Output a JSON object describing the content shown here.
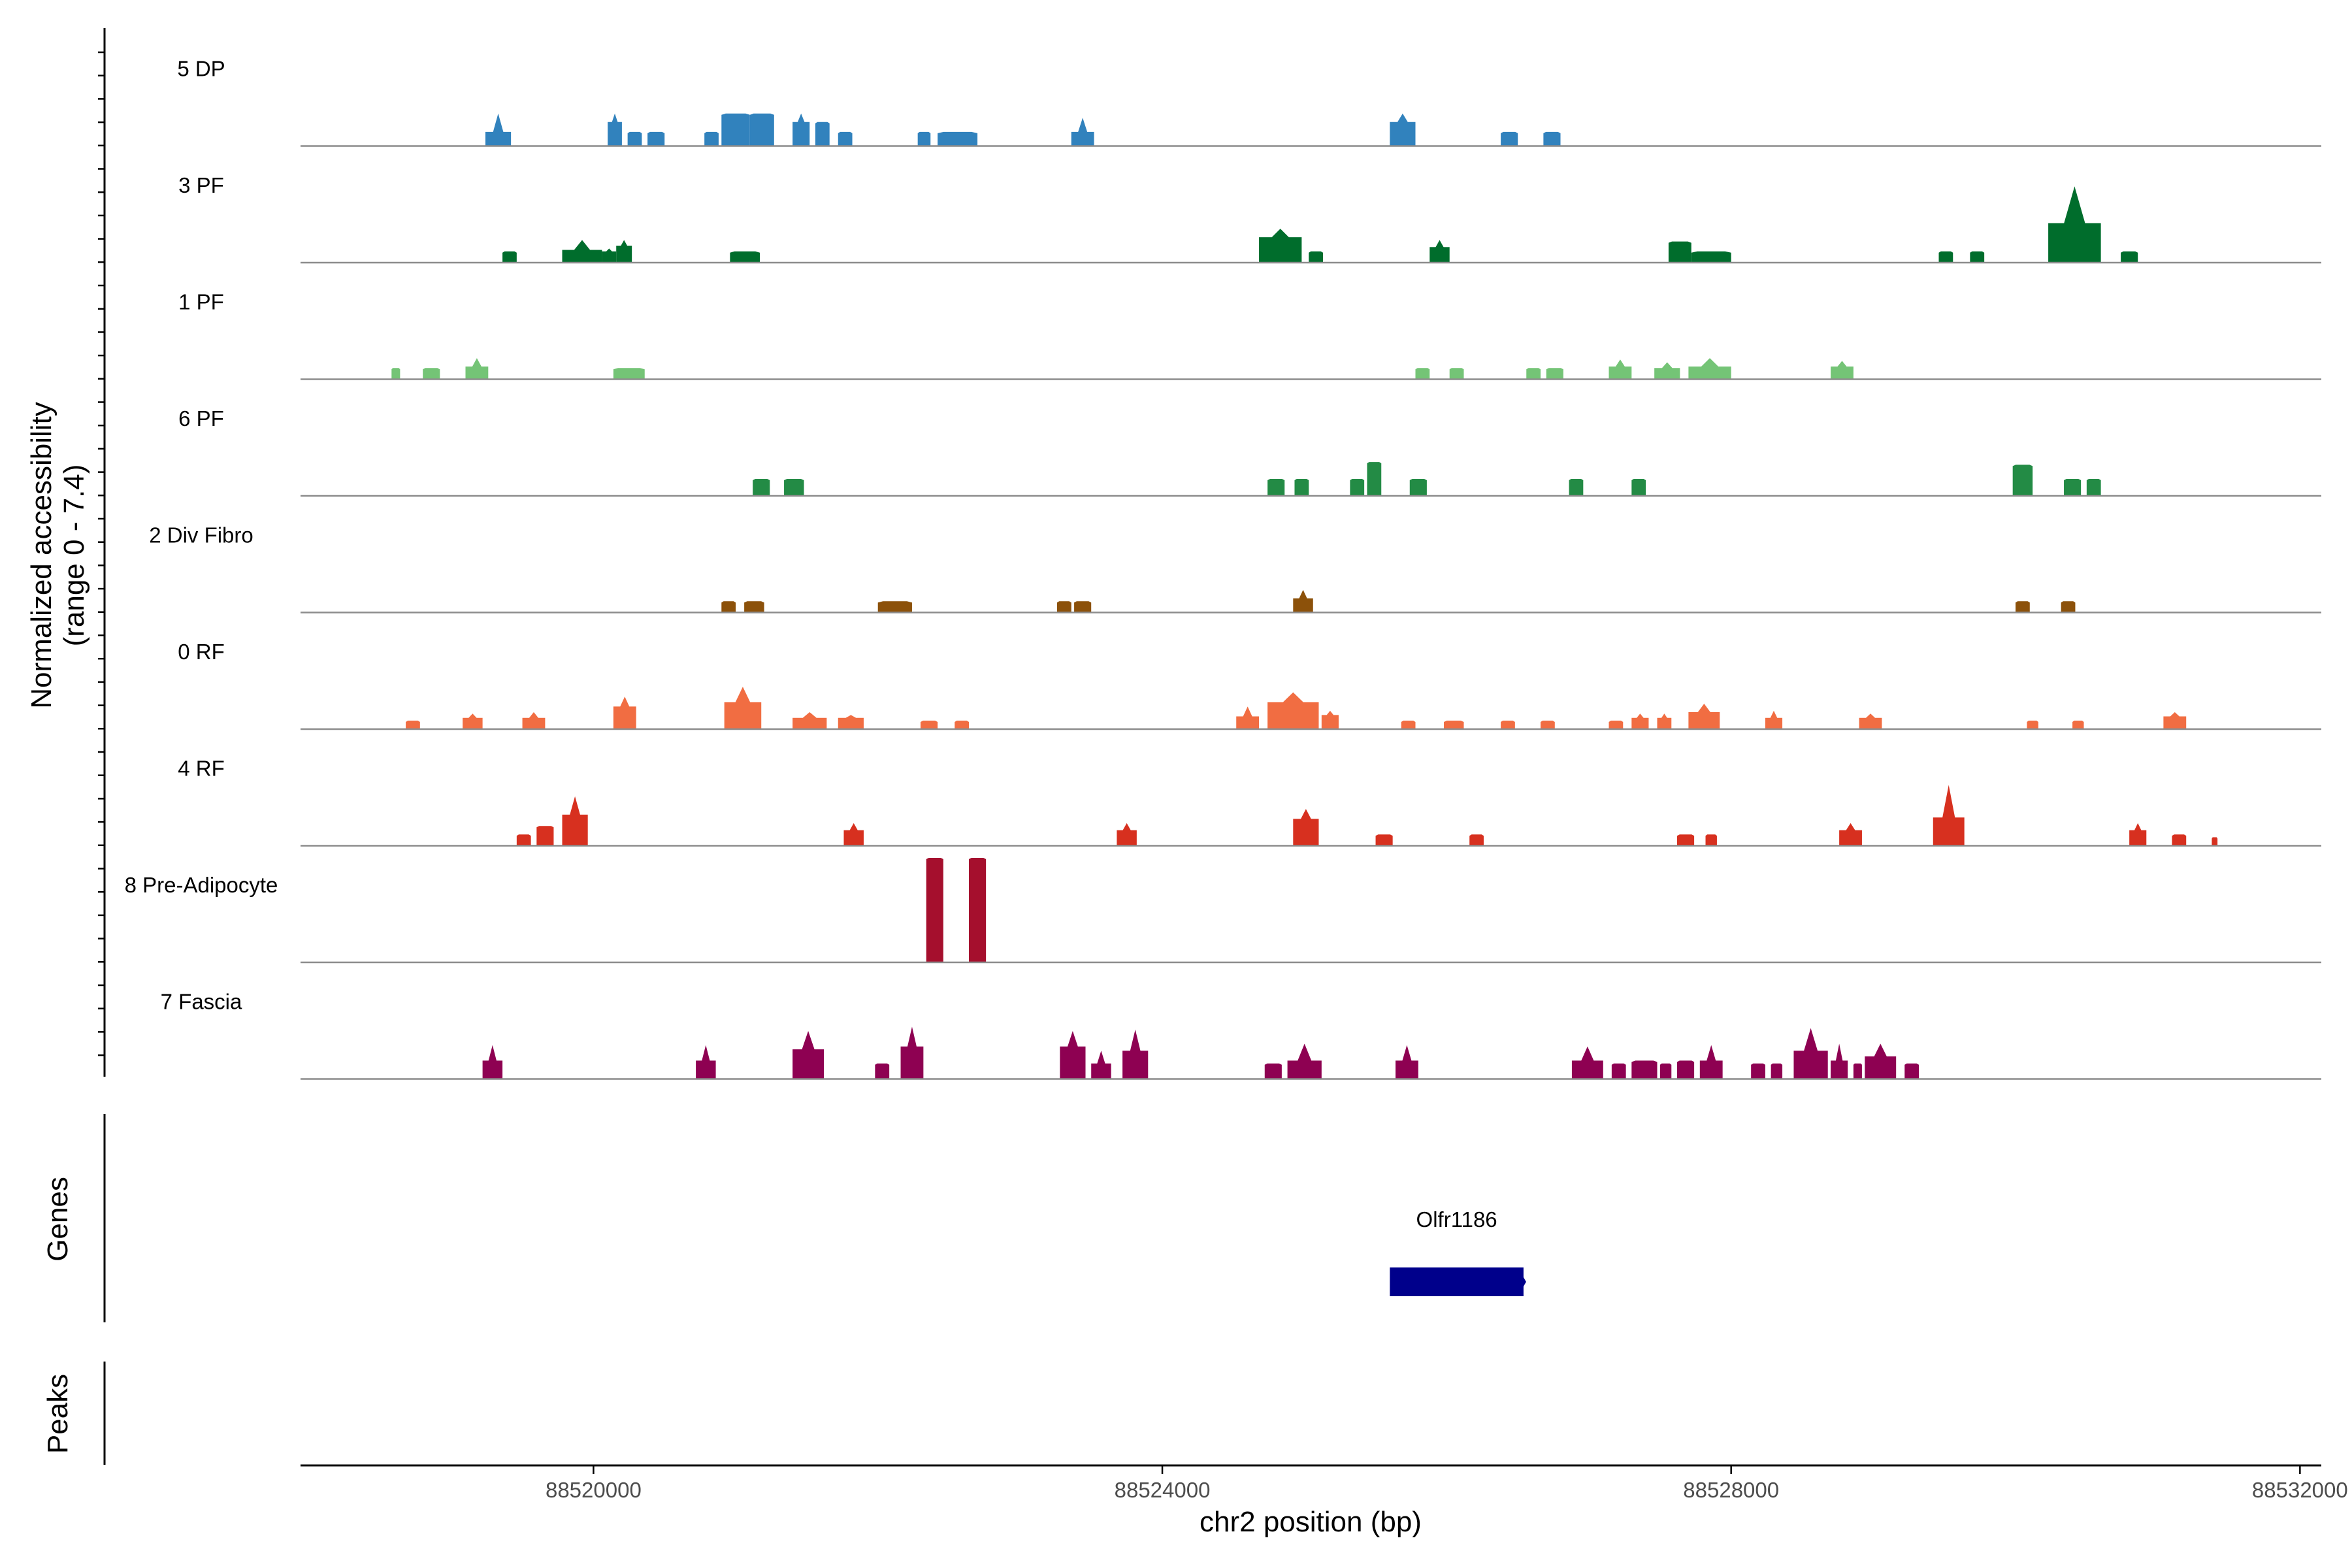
{
  "chart_data": {
    "type": "coverage",
    "x_axis": {
      "label": "chr2 position (bp)",
      "range": [
        88517940,
        88532150
      ],
      "ticks": [
        88520000,
        88524000,
        88528000,
        88532000
      ],
      "tick_labels": [
        "88520000",
        "88524000",
        "88528000",
        "88532000"
      ]
    },
    "y_axis": {
      "label_line1": "Normalized accessibility",
      "label_line2": "(range 0 - 7.4)",
      "range": [
        0,
        7.4
      ]
    },
    "genes_label": "Genes",
    "peaks_label": "Peaks",
    "genes": [
      {
        "name": "Olfr1186",
        "start": 88525600,
        "end": 88526540,
        "strand": "+",
        "color": "#00008B"
      }
    ],
    "tracks": [
      {
        "name": "5 DP",
        "color": "#3182BD",
        "peaks": [
          [
            88519240,
            88519420,
            1.0,
            2.3
          ],
          [
            88520100,
            88520200,
            1.7,
            2.3
          ],
          [
            88520240,
            88520340,
            1.0,
            1.0
          ],
          [
            88520380,
            88520500,
            1.0,
            1.0
          ],
          [
            88520780,
            88520880,
            1.0,
            1.0
          ],
          [
            88520900,
            88521100,
            2.3,
            2.3
          ],
          [
            88521100,
            88521270,
            2.3,
            1.0
          ],
          [
            88521400,
            88521520,
            1.7,
            2.3
          ],
          [
            88521560,
            88521660,
            1.7,
            1.0
          ],
          [
            88521720,
            88521820,
            1.0,
            1.0
          ],
          [
            88522280,
            88522370,
            1.0,
            1.0
          ],
          [
            88522420,
            88522700,
            1.0,
            1.0
          ],
          [
            88523360,
            88523520,
            1.0,
            2.0
          ],
          [
            88525600,
            88525780,
            1.7,
            2.3
          ],
          [
            88526380,
            88526500,
            1.0,
            1.0
          ],
          [
            88526680,
            88526800,
            1.0,
            1.0
          ]
        ]
      },
      {
        "name": "3 PF",
        "color": "#006D2C",
        "peaks": [
          [
            88519360,
            88519460,
            0.8,
            0.8
          ],
          [
            88519780,
            88520060,
            0.9,
            1.6
          ],
          [
            88520060,
            88520160,
            0.8,
            1.0
          ],
          [
            88520160,
            88520270,
            1.2,
            1.6
          ],
          [
            88520960,
            88521170,
            0.8,
            0.8
          ],
          [
            88524680,
            88524980,
            1.8,
            2.4
          ],
          [
            88525030,
            88525130,
            0.8,
            0.8
          ],
          [
            88525880,
            88526020,
            1.1,
            1.6
          ],
          [
            88527560,
            88527720,
            1.5,
            1.5
          ],
          [
            88527720,
            88528000,
            0.8,
            0.8
          ],
          [
            88529460,
            88529560,
            0.8,
            0.8
          ],
          [
            88529680,
            88529780,
            0.8,
            0.8
          ],
          [
            88530230,
            88530600,
            2.8,
            5.4
          ],
          [
            88530740,
            88530860,
            0.8,
            0.8
          ]
        ]
      },
      {
        "name": "1 PF",
        "color": "#74C476",
        "peaks": [
          [
            88518580,
            88518640,
            0.8,
            0.8
          ],
          [
            88518800,
            88518920,
            0.8,
            0.8
          ],
          [
            88519100,
            88519260,
            0.9,
            1.5
          ],
          [
            88520140,
            88520360,
            0.8,
            0.8
          ],
          [
            88525780,
            88525880,
            0.8,
            0.8
          ],
          [
            88526020,
            88526120,
            0.8,
            0.8
          ],
          [
            88526560,
            88526660,
            0.8,
            0.8
          ],
          [
            88526700,
            88526820,
            0.8,
            0.8
          ],
          [
            88527140,
            88527300,
            0.9,
            1.4
          ],
          [
            88527460,
            88527640,
            0.8,
            1.2
          ],
          [
            88527700,
            88528000,
            0.9,
            1.5
          ],
          [
            88528700,
            88528860,
            0.9,
            1.3
          ]
        ]
      },
      {
        "name": "6 PF",
        "color": "#238B45",
        "peaks": [
          [
            88521120,
            88521240,
            1.2,
            1.2
          ],
          [
            88521340,
            88521480,
            1.2,
            1.2
          ],
          [
            88524740,
            88524860,
            1.2,
            1.2
          ],
          [
            88524930,
            88525030,
            1.2,
            1.2
          ],
          [
            88525320,
            88525420,
            1.2,
            1.2
          ],
          [
            88525440,
            88525540,
            2.4,
            2.4
          ],
          [
            88525740,
            88525860,
            1.2,
            1.2
          ],
          [
            88526860,
            88526960,
            1.2,
            1.2
          ],
          [
            88527300,
            88527400,
            1.2,
            1.2
          ],
          [
            88529980,
            88530120,
            2.2,
            2.2
          ],
          [
            88530340,
            88530460,
            1.2,
            1.2
          ],
          [
            88530500,
            88530600,
            1.2,
            1.2
          ]
        ]
      },
      {
        "name": "2 Div Fibro",
        "color": "#8C510A",
        "peaks": [
          [
            88520900,
            88521000,
            0.8,
            0.8
          ],
          [
            88521060,
            88521200,
            0.8,
            0.8
          ],
          [
            88522000,
            88522240,
            0.8,
            0.8
          ],
          [
            88523260,
            88523360,
            0.8,
            0.8
          ],
          [
            88523380,
            88523500,
            0.8,
            0.8
          ],
          [
            88524920,
            88525060,
            1.0,
            1.6
          ],
          [
            88530000,
            88530100,
            0.8,
            0.8
          ],
          [
            88530320,
            88530420,
            0.8,
            0.8
          ]
        ]
      },
      {
        "name": "0 RF",
        "color": "#F16D42",
        "peaks": [
          [
            88518680,
            88518780,
            0.6,
            0.6
          ],
          [
            88519080,
            88519220,
            0.8,
            1.1
          ],
          [
            88519500,
            88519660,
            0.8,
            1.2
          ],
          [
            88520140,
            88520300,
            1.6,
            2.3
          ],
          [
            88520920,
            88521180,
            1.9,
            3.0
          ],
          [
            88521400,
            88521640,
            0.8,
            1.2
          ],
          [
            88521720,
            88521900,
            0.8,
            1.0
          ],
          [
            88522300,
            88522420,
            0.6,
            0.6
          ],
          [
            88522540,
            88522640,
            0.6,
            0.6
          ],
          [
            88524520,
            88524680,
            0.9,
            1.6
          ],
          [
            88524740,
            88525100,
            1.9,
            2.6
          ],
          [
            88525120,
            88525240,
            1.0,
            1.3
          ],
          [
            88525680,
            88525780,
            0.6,
            0.6
          ],
          [
            88525980,
            88526120,
            0.6,
            0.6
          ],
          [
            88526380,
            88526480,
            0.6,
            0.6
          ],
          [
            88526660,
            88526760,
            0.6,
            0.6
          ],
          [
            88527140,
            88527240,
            0.6,
            0.6
          ],
          [
            88527300,
            88527420,
            0.8,
            1.1
          ],
          [
            88527480,
            88527580,
            0.8,
            1.1
          ],
          [
            88527700,
            88527920,
            1.2,
            1.8
          ],
          [
            88528240,
            88528360,
            0.8,
            1.3
          ],
          [
            88528900,
            88529060,
            0.8,
            1.1
          ],
          [
            88530080,
            88530160,
            0.6,
            0.6
          ],
          [
            88530400,
            88530480,
            0.6,
            0.6
          ],
          [
            88531040,
            88531200,
            0.9,
            1.2
          ]
        ]
      },
      {
        "name": "4 RF",
        "color": "#D7301F",
        "peaks": [
          [
            88519460,
            88519560,
            0.8,
            0.8
          ],
          [
            88519600,
            88519720,
            1.4,
            1.4
          ],
          [
            88519780,
            88519960,
            2.2,
            3.5
          ],
          [
            88521760,
            88521900,
            1.1,
            1.6
          ],
          [
            88523680,
            88523820,
            1.1,
            1.6
          ],
          [
            88524920,
            88525100,
            1.9,
            2.6
          ],
          [
            88525500,
            88525620,
            0.8,
            0.8
          ],
          [
            88526160,
            88526260,
            0.8,
            0.8
          ],
          [
            88527620,
            88527740,
            0.8,
            0.8
          ],
          [
            88527820,
            88527900,
            0.8,
            0.8
          ],
          [
            88528760,
            88528920,
            1.1,
            1.6
          ],
          [
            88529420,
            88529640,
            2.0,
            4.3
          ],
          [
            88530800,
            88530920,
            1.1,
            1.6
          ],
          [
            88531100,
            88531200,
            0.8,
            0.8
          ],
          [
            88531380,
            88531420,
            0.6,
            0.6
          ]
        ]
      },
      {
        "name": "8 Pre-Adipocyte",
        "color": "#A50F2D",
        "peaks": [
          [
            88522340,
            88522460,
            7.4,
            7.4
          ],
          [
            88522640,
            88522760,
            7.4,
            7.4
          ]
        ]
      },
      {
        "name": "7 Fascia",
        "color": "#8E0152",
        "peaks": [
          [
            88519220,
            88519360,
            1.3,
            2.4
          ],
          [
            88520720,
            88520860,
            1.3,
            2.4
          ],
          [
            88521400,
            88521620,
            2.1,
            3.4
          ],
          [
            88521980,
            88522080,
            1.1,
            1.1
          ],
          [
            88522160,
            88522320,
            2.3,
            3.7
          ],
          [
            88523280,
            88523460,
            2.3,
            3.4
          ],
          [
            88523500,
            88523640,
            1.1,
            2.0
          ],
          [
            88523720,
            88523900,
            2.0,
            3.5
          ],
          [
            88524720,
            88524840,
            1.1,
            1.1
          ],
          [
            88524880,
            88525120,
            1.3,
            2.5
          ],
          [
            88525640,
            88525800,
            1.3,
            2.4
          ],
          [
            88526880,
            88527100,
            1.3,
            2.3
          ],
          [
            88527160,
            88527260,
            1.1,
            1.1
          ],
          [
            88527300,
            88527480,
            1.3,
            1.3
          ],
          [
            88527500,
            88527580,
            1.1,
            1.1
          ],
          [
            88527620,
            88527740,
            1.3,
            1.3
          ],
          [
            88527780,
            88527940,
            1.3,
            2.4
          ],
          [
            88528140,
            88528240,
            1.1,
            1.1
          ],
          [
            88528280,
            88528360,
            1.1,
            1.1
          ],
          [
            88528440,
            88528680,
            2.0,
            3.6
          ],
          [
            88528700,
            88528820,
            1.3,
            2.5
          ],
          [
            88528860,
            88528920,
            1.1,
            1.1
          ],
          [
            88528940,
            88529160,
            1.6,
            2.5
          ],
          [
            88529220,
            88529320,
            1.1,
            1.1
          ]
        ]
      }
    ]
  }
}
